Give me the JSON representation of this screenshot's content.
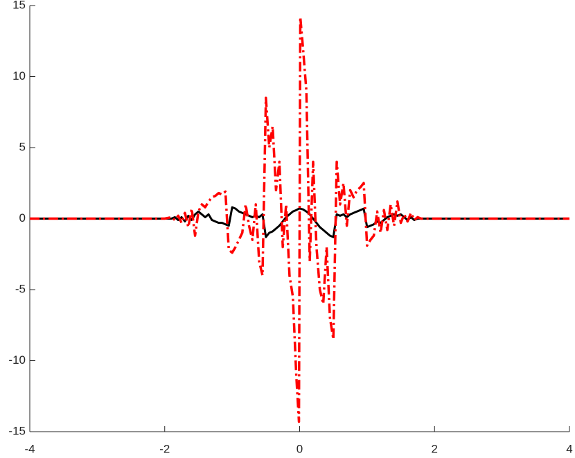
{
  "chart_data": {
    "type": "line",
    "x": [
      -4,
      -2,
      -1.9,
      -1.85,
      -1.8,
      -1.75,
      -1.7,
      -1.65,
      -1.6,
      -1.55,
      -1.5,
      -1.45,
      -1.4,
      -1.35,
      -1.3,
      -1.25,
      -1.2,
      -1.15,
      -1.1,
      -1.05,
      -1,
      -0.95,
      -0.9,
      -0.85,
      -0.8,
      -0.75,
      -0.7,
      -0.65,
      -0.6,
      -0.55,
      -0.5,
      -0.45,
      -0.4,
      -0.35,
      -0.3,
      -0.25,
      -0.2,
      -0.15,
      -0.1,
      -0.05,
      -0.01,
      0.01,
      0.05,
      0.1,
      0.15,
      0.2,
      0.25,
      0.3,
      0.35,
      0.4,
      0.45,
      0.5,
      0.55,
      0.6,
      0.65,
      0.7,
      0.75,
      0.8,
      0.85,
      0.9,
      0.95,
      1,
      1.05,
      1.1,
      1.15,
      1.2,
      1.25,
      1.3,
      1.35,
      1.4,
      1.45,
      1.5,
      1.55,
      1.6,
      1.65,
      1.7,
      1.75,
      1.8,
      1.9,
      2,
      4
    ],
    "series": [
      {
        "color": "#000000",
        "dash": "solid",
        "values": [
          0,
          0,
          0,
          0.1,
          -0.1,
          0.1,
          -0.2,
          0.2,
          -0.1,
          0.3,
          0.5,
          0.3,
          0.1,
          0.3,
          -0.1,
          -0.2,
          -0.3,
          -0.3,
          -0.4,
          -0.5,
          0.8,
          0.7,
          0.5,
          0.4,
          0.3,
          0.2,
          0.1,
          0.2,
          0.1,
          0.3,
          -1.3,
          -1.0,
          -0.9,
          -0.7,
          -0.5,
          -0.2,
          0.1,
          0.3,
          0.5,
          0.6,
          0.7,
          0.7,
          0.65,
          0.5,
          0.3,
          0.0,
          -0.3,
          -0.6,
          -0.8,
          -1.0,
          -1.2,
          -1.3,
          0.3,
          0.2,
          0.3,
          0.1,
          0.3,
          0.4,
          0.5,
          0.6,
          0.7,
          -0.6,
          -0.5,
          -0.4,
          -0.2,
          -0.3,
          -0.1,
          0.1,
          0.2,
          0.3,
          0.2,
          0.3,
          0.1,
          -0.1,
          0.1,
          -0.1,
          0,
          0,
          0,
          0,
          0
        ]
      },
      {
        "color": "#ff0000",
        "dash": "dashdot",
        "values": [
          0,
          0,
          0.1,
          -0.1,
          0.2,
          -0.3,
          0.4,
          -0.6,
          0.7,
          -1.2,
          0.5,
          1.0,
          0.8,
          1.2,
          1.5,
          1.6,
          1.8,
          1.7,
          1.9,
          -2.2,
          -2.4,
          -2.0,
          -1.5,
          -1.0,
          1.0,
          -0.5,
          -1.5,
          1.0,
          -3.0,
          -4.0,
          8.5,
          5.0,
          6.5,
          2.0,
          4.0,
          -2.0,
          1.0,
          -4.0,
          -5.5,
          -11,
          -14.3,
          14.2,
          12,
          9,
          -3,
          4,
          -2,
          -5,
          -6,
          -2,
          -7,
          -8.5,
          4,
          1,
          2.5,
          -0.5,
          2,
          1.5,
          2,
          2.2,
          2.5,
          -1.9,
          -1.5,
          -1.2,
          0.5,
          -1.0,
          0.6,
          -0.8,
          1.0,
          -0.5,
          1.2,
          -0.3,
          0.3,
          -0.2,
          0.4,
          -0.1,
          0.1,
          0,
          0,
          0,
          0
        ]
      }
    ],
    "xlim": [
      -4,
      4
    ],
    "ylim": [
      -15,
      15
    ],
    "xticks": [
      -4,
      -2,
      0,
      2,
      4
    ],
    "yticks": [
      -15,
      -10,
      -5,
      0,
      5,
      10,
      15
    ],
    "grid": false
  }
}
